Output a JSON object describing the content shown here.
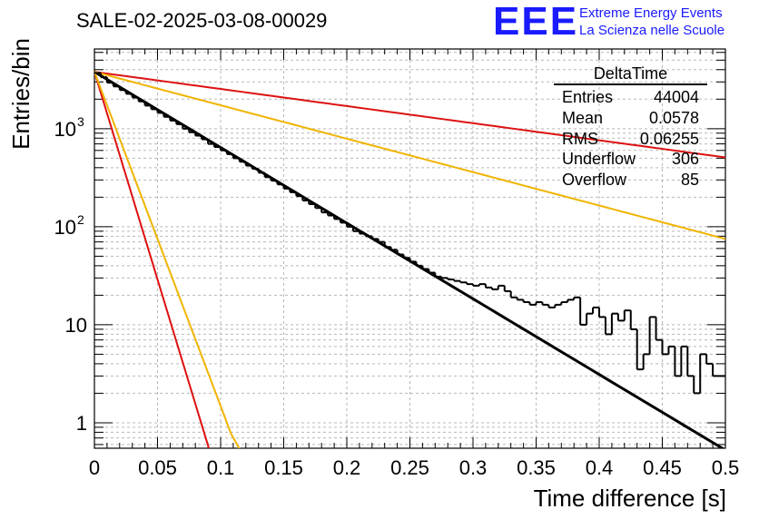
{
  "title": "SALE-02-2025-03-08-00029",
  "logo": {
    "mark": "EEE",
    "line1": "Extreme Energy Events",
    "line2": "La Scienza nelle Scuole",
    "color": "#1a1aff"
  },
  "stats": {
    "name": "DeltaTime",
    "rows": [
      {
        "label": "Entries",
        "value": "44004"
      },
      {
        "label": "Mean",
        "value": "0.0578"
      },
      {
        "label": "RMS",
        "value": "0.06255"
      },
      {
        "label": "Underflow",
        "value": "306"
      },
      {
        "label": "Overflow",
        "value": "85"
      }
    ]
  },
  "chart_data": {
    "type": "line",
    "title": "SALE-02-2025-03-08-00029",
    "xlabel": "Time difference [s]",
    "ylabel": "Entries/bin",
    "xlim": [
      0,
      0.5
    ],
    "ylim": [
      0.55,
      6500
    ],
    "yscale": "log",
    "grid": true,
    "x_ticks": [
      0,
      0.05,
      0.1,
      0.15,
      0.2,
      0.25,
      0.3,
      0.35,
      0.4,
      0.45,
      0.5
    ],
    "x_tick_labels": [
      "0",
      "0.05",
      "0.1",
      "0.15",
      "0.2",
      "0.25",
      "0.3",
      "0.35",
      "0.4",
      "0.45",
      "0.5"
    ],
    "y_tick_labels": [
      {
        "value": 1,
        "label": "1"
      },
      {
        "value": 10,
        "label": "10"
      },
      {
        "value": 100,
        "label": "10",
        "exp": "2"
      },
      {
        "value": 1000,
        "label": "10",
        "exp": "3"
      }
    ],
    "histogram": {
      "bin_width": 0.005,
      "x_start": 0,
      "values": [
        3700,
        3350,
        2950,
        2700,
        2480,
        2270,
        2080,
        1900,
        1720,
        1580,
        1450,
        1320,
        1210,
        1110,
        1000,
        920,
        850,
        780,
        700,
        650,
        600,
        550,
        500,
        460,
        420,
        390,
        355,
        320,
        295,
        270,
        245,
        225,
        205,
        185,
        170,
        155,
        140,
        130,
        120,
        110,
        100,
        90,
        85,
        80,
        75,
        70,
        62,
        58,
        52,
        48,
        44,
        40,
        37,
        34,
        31,
        30,
        29,
        28,
        27,
        26,
        25,
        26,
        24,
        23,
        25,
        22,
        19,
        18,
        17,
        16,
        17,
        16,
        15,
        16,
        17,
        18,
        19,
        10,
        13,
        15,
        12,
        8,
        13,
        11,
        14,
        9,
        3.5,
        5,
        12,
        7,
        5,
        6,
        3,
        6,
        3,
        2,
        5,
        4,
        3,
        3
      ]
    },
    "fit_lines": [
      {
        "color": "#000000",
        "width": 3,
        "y0": 3800,
        "decay": 17.77
      },
      {
        "color": "#dd1111",
        "width": 2,
        "y0": 3800,
        "decay": 4.02
      },
      {
        "color": "#f0b400",
        "width": 2,
        "y0": 3800,
        "decay": 7.85
      },
      {
        "color": "#dd1111",
        "width": 2,
        "y0": 3800,
        "decay": 97.5
      },
      {
        "color": "#f0b400",
        "width": 2,
        "y0": 3800,
        "decay": 78.5
      }
    ]
  }
}
